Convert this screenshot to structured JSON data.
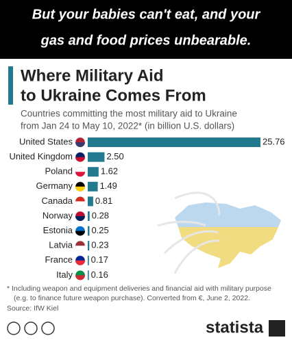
{
  "banner": [
    "But your babies can't eat, and your",
    "gas and food prices unbearable."
  ],
  "chart_data": {
    "type": "bar",
    "orientation": "horizontal",
    "title": [
      "Where Military Aid",
      "to Ukraine Comes From"
    ],
    "subtitle": [
      "Countries committing the most military aid to Ukraine",
      "from Jan 24 to May 10, 2022* (in billion U.S. dollars)"
    ],
    "categories": [
      "United States",
      "United Kingdom",
      "Poland",
      "Germany",
      "Canada",
      "Norway",
      "Estonia",
      "Latvia",
      "France",
      "Italy"
    ],
    "values": [
      25.76,
      2.5,
      1.62,
      1.49,
      0.81,
      0.28,
      0.25,
      0.23,
      0.17,
      0.16
    ],
    "value_labels": [
      "25.76",
      "2.50",
      "1.62",
      "1.49",
      "0.81",
      "0.28",
      "0.25",
      "0.23",
      "0.17",
      "0.16"
    ],
    "color": "#23798e",
    "footnote": [
      "* Including weapon and equipment deliveries and financial aid with military purpose",
      "(e.g. to finance future weapon purchase). Converted from €, June 2, 2022."
    ],
    "source": "Source: IfW Kiel"
  },
  "logo": "statista"
}
